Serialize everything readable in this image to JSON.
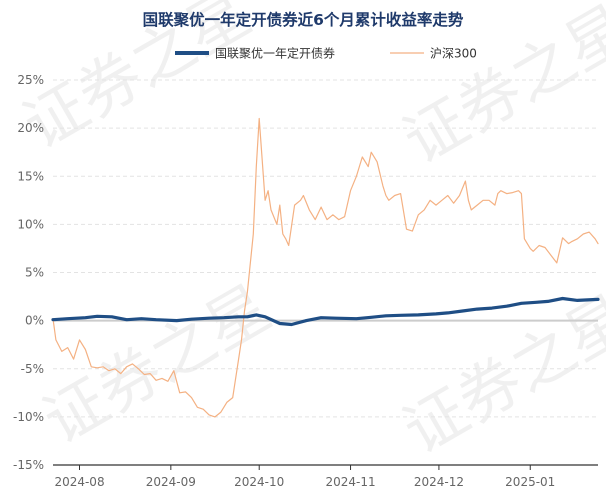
{
  "colors": {
    "fund": "#1f4e85",
    "index": "#f4b183",
    "grid": "#e3e3e3",
    "zero": "#cccccc",
    "axis": "#333333"
  },
  "watermark": {
    "text": "证券之星"
  },
  "chart_data": {
    "type": "line",
    "title": "国联聚优一年定开债券近6个月累计收益率走势",
    "legend_position": "top-center",
    "grid": true,
    "xlabel": "",
    "ylabel": "",
    "ylim": [
      -15,
      25
    ],
    "yticks": [
      -15,
      -10,
      -5,
      0,
      5,
      10,
      15,
      20,
      25
    ],
    "ytick_labels": [
      "-15%",
      "-10%",
      "-5%",
      "0%",
      "5%",
      "10%",
      "15%",
      "20%",
      "25%"
    ],
    "xlim": [
      "2024-07-23",
      "2025-01-24"
    ],
    "xticks": [
      "2024-08-01",
      "2024-09-01",
      "2024-10-01",
      "2024-11-01",
      "2024-12-01",
      "2025-01-01"
    ],
    "xtick_labels": [
      "2024-08",
      "2024-09",
      "2024-10",
      "2024-11",
      "2024-12",
      "2025-01"
    ],
    "series": [
      {
        "name": "国联聚优一年定开债券",
        "color": "#1f4e85",
        "x": [
          "2024-07-23",
          "2024-07-28",
          "2024-08-03",
          "2024-08-07",
          "2024-08-12",
          "2024-08-17",
          "2024-08-22",
          "2024-08-27",
          "2024-09-03",
          "2024-09-08",
          "2024-09-14",
          "2024-09-19",
          "2024-09-24",
          "2024-09-27",
          "2024-09-30",
          "2024-10-03",
          "2024-10-08",
          "2024-10-12",
          "2024-10-17",
          "2024-10-22",
          "2024-10-27",
          "2024-11-03",
          "2024-11-08",
          "2024-11-13",
          "2024-11-18",
          "2024-11-24",
          "2024-11-30",
          "2024-12-04",
          "2024-12-09",
          "2024-12-14",
          "2024-12-19",
          "2024-12-24",
          "2024-12-29",
          "2025-01-03",
          "2025-01-07",
          "2025-01-12",
          "2025-01-17",
          "2025-01-24"
        ],
        "y": [
          0.1,
          0.2,
          0.3,
          0.45,
          0.4,
          0.1,
          0.2,
          0.1,
          0.0,
          0.15,
          0.25,
          0.3,
          0.4,
          0.4,
          0.6,
          0.4,
          -0.3,
          -0.4,
          0.0,
          0.3,
          0.25,
          0.2,
          0.35,
          0.5,
          0.55,
          0.6,
          0.7,
          0.8,
          1.0,
          1.2,
          1.3,
          1.5,
          1.8,
          1.9,
          2.0,
          2.3,
          2.1,
          2.2
        ]
      },
      {
        "name": "沪深300",
        "color": "#f4b183",
        "x": [
          "2024-07-23",
          "2024-07-24",
          "2024-07-26",
          "2024-07-28",
          "2024-07-30",
          "2024-08-01",
          "2024-08-03",
          "2024-08-05",
          "2024-08-07",
          "2024-08-09",
          "2024-08-11",
          "2024-08-13",
          "2024-08-15",
          "2024-08-17",
          "2024-08-19",
          "2024-08-21",
          "2024-08-23",
          "2024-08-25",
          "2024-08-27",
          "2024-08-29",
          "2024-08-31",
          "2024-09-02",
          "2024-09-04",
          "2024-09-06",
          "2024-09-08",
          "2024-09-10",
          "2024-09-12",
          "2024-09-14",
          "2024-09-16",
          "2024-09-18",
          "2024-09-20",
          "2024-09-22",
          "2024-09-24",
          "2024-09-25",
          "2024-09-26",
          "2024-09-27",
          "2024-09-29",
          "2024-09-30",
          "2024-10-01",
          "2024-10-03",
          "2024-10-04",
          "2024-10-05",
          "2024-10-07",
          "2024-10-08",
          "2024-10-09",
          "2024-10-10",
          "2024-10-11",
          "2024-10-13",
          "2024-10-15",
          "2024-10-16",
          "2024-10-18",
          "2024-10-20",
          "2024-10-22",
          "2024-10-24",
          "2024-10-26",
          "2024-10-28",
          "2024-10-30",
          "2024-11-01",
          "2024-11-03",
          "2024-11-05",
          "2024-11-07",
          "2024-11-08",
          "2024-11-10",
          "2024-11-12",
          "2024-11-13",
          "2024-11-14",
          "2024-11-16",
          "2024-11-18",
          "2024-11-20",
          "2024-11-22",
          "2024-11-24",
          "2024-11-26",
          "2024-11-28",
          "2024-11-30",
          "2024-12-02",
          "2024-12-04",
          "2024-12-06",
          "2024-12-08",
          "2024-12-10",
          "2024-12-11",
          "2024-12-12",
          "2024-12-14",
          "2024-12-16",
          "2024-12-18",
          "2024-12-20",
          "2024-12-21",
          "2024-12-22",
          "2024-12-24",
          "2024-12-26",
          "2024-12-28",
          "2024-12-29",
          "2024-12-30",
          "2025-01-01",
          "2025-01-02",
          "2025-01-04",
          "2025-01-06",
          "2025-01-08",
          "2025-01-10",
          "2025-01-12",
          "2025-01-14",
          "2025-01-15",
          "2025-01-17",
          "2025-01-19",
          "2025-01-21",
          "2025-01-23",
          "2025-01-24"
        ],
        "y": [
          0.2,
          -2.0,
          -3.2,
          -2.8,
          -4.0,
          -2.0,
          -3.0,
          -4.8,
          -4.9,
          -4.8,
          -5.2,
          -5.0,
          -5.5,
          -4.8,
          -4.5,
          -5.0,
          -5.6,
          -5.5,
          -6.2,
          -6.0,
          -6.3,
          -5.2,
          -7.5,
          -7.4,
          -8.0,
          -9.0,
          -9.2,
          -9.8,
          -10.0,
          -9.5,
          -8.5,
          -8.0,
          -4.0,
          -2.0,
          1.0,
          3.0,
          9.0,
          16.0,
          21.0,
          12.5,
          13.5,
          11.5,
          10.0,
          12.0,
          9.0,
          8.5,
          7.8,
          12.0,
          12.5,
          13.0,
          11.5,
          10.5,
          11.8,
          10.5,
          11.0,
          10.5,
          10.8,
          13.5,
          15.0,
          17.0,
          16.0,
          17.5,
          16.5,
          14.0,
          13.0,
          12.5,
          13.0,
          13.2,
          9.5,
          9.3,
          11.0,
          11.5,
          12.5,
          12.0,
          12.5,
          13.0,
          12.2,
          13.0,
          14.5,
          12.5,
          11.5,
          12.0,
          12.5,
          12.5,
          12.0,
          13.2,
          13.5,
          13.2,
          13.3,
          13.5,
          13.2,
          8.5,
          7.5,
          7.2,
          7.8,
          7.6,
          6.8,
          6.0,
          8.6,
          8.0,
          8.2,
          8.5,
          9.0,
          9.2,
          8.5,
          8.0
        ]
      }
    ]
  }
}
